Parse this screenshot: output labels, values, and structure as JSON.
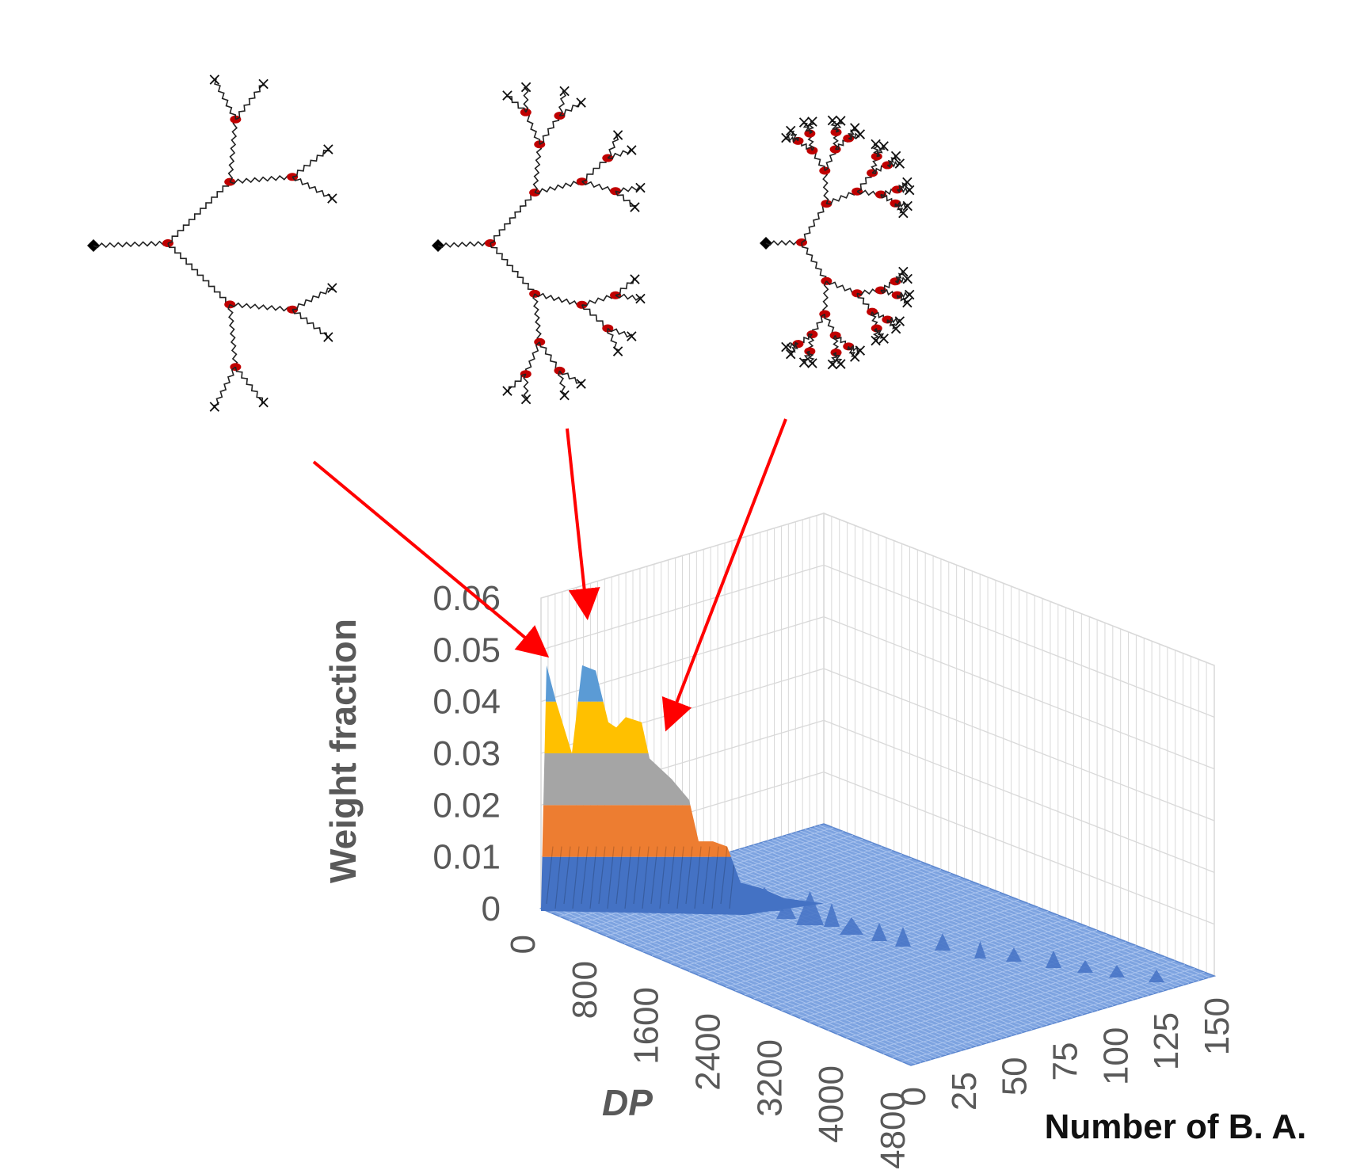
{
  "chart_data": {
    "type": "surface",
    "title": "",
    "zlabel": "Weight fraction",
    "xlabel": "DP",
    "ylabel": "Number of B. A.",
    "z_ticks": [
      "0",
      "0.01",
      "0.02",
      "0.03",
      "0.04",
      "0.05",
      "0.06"
    ],
    "x_ticks": [
      "0",
      "800",
      "1600",
      "2400",
      "3200",
      "4000",
      "4800"
    ],
    "y_ticks": [
      "0",
      "25",
      "50",
      "75",
      "100",
      "125",
      "150"
    ],
    "zlim": [
      0,
      0.06
    ],
    "xlim": [
      0,
      4800
    ],
    "ylim": [
      0,
      150
    ],
    "grid": true,
    "color_bands": [
      {
        "range": [
          0,
          0.01
        ],
        "color": "#4472c4"
      },
      {
        "range": [
          0.01,
          0.02
        ],
        "color": "#ed7d31"
      },
      {
        "range": [
          0.02,
          0.03
        ],
        "color": "#a5a5a5"
      },
      {
        "range": [
          0.03,
          0.04
        ],
        "color": "#ffc000"
      },
      {
        "range": [
          0.04,
          0.05
        ],
        "color": "#5b9bd5"
      }
    ],
    "peaks": [
      {
        "number_of_ba": 0,
        "dp": 150,
        "weight_fraction": 0.048
      },
      {
        "number_of_ba": 6,
        "dp": 350,
        "weight_fraction": 0.048
      },
      {
        "number_of_ba": 14,
        "dp": 500,
        "weight_fraction": 0.034
      },
      {
        "number_of_ba": 25,
        "dp": 700,
        "weight_fraction": 0.022
      },
      {
        "number_of_ba": 40,
        "dp": 1000,
        "weight_fraction": 0.013
      }
    ]
  },
  "colors": {
    "arrow": "#ff0000",
    "branch_point": "#c00000",
    "chain": "#222222",
    "grid": "#d9d9d9",
    "floor": "#7da3e0"
  },
  "icons": [
    "core-diamond-icon",
    "branch-point-icon",
    "chain-end-x-icon"
  ],
  "structures": [
    {
      "name": "low-branching-dendrimer"
    },
    {
      "name": "medium-branching-dendrimer"
    },
    {
      "name": "high-branching-dendrimer"
    }
  ]
}
